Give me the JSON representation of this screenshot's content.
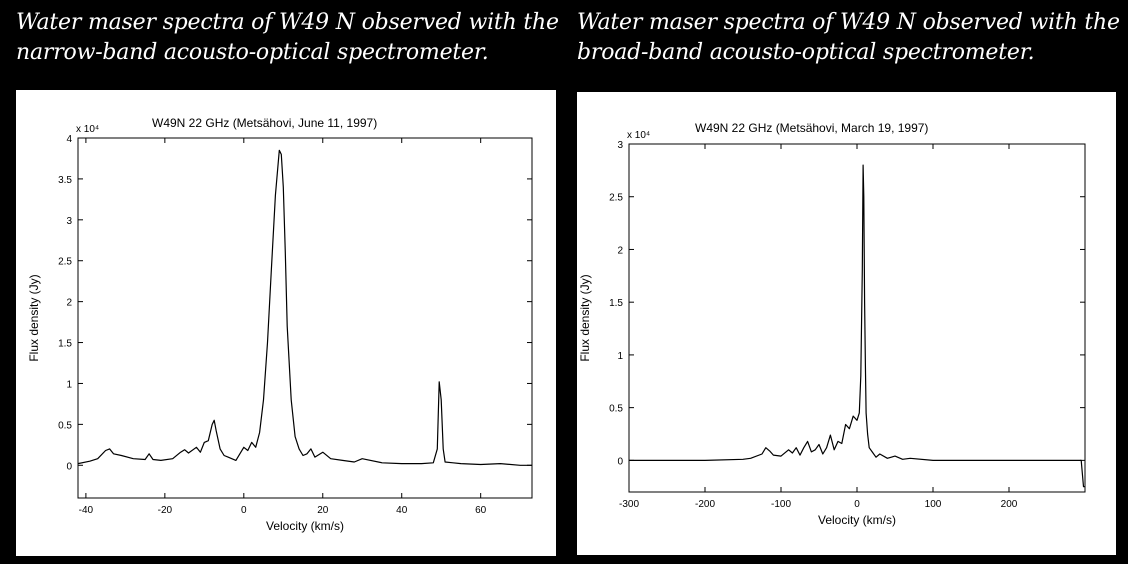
{
  "captions": {
    "left": "Water maser spectra of W49 N observed with the\nnarrow-band acousto-optical spectrometer.",
    "right": "Water maser spectra of W49 N observed with the\nbroad-band acousto-optical spectrometer."
  },
  "chart_data": [
    {
      "type": "line",
      "title": "W49N  22 GHz     (Metsähovi,  June 11, 1997)",
      "xlabel": "Velocity (km/s)",
      "ylabel": "Flux density (Jy)",
      "y_multiplier": "x 10⁴",
      "xlim": [
        -42,
        73
      ],
      "ylim": [
        -0.4,
        4
      ],
      "xticks": [
        -40,
        -20,
        0,
        20,
        40,
        60
      ],
      "xtick_labels": [
        "-40",
        "-20",
        "0",
        "20",
        "40",
        "60"
      ],
      "yticks": [
        0,
        0.5,
        1,
        1.5,
        2,
        2.5,
        3,
        3.5,
        4
      ],
      "ytick_labels": [
        "0",
        "0.5",
        "1",
        "1.5",
        "2",
        "2.5",
        "3",
        "3.5",
        "4"
      ],
      "grid": false,
      "x": [
        -42,
        -39,
        -37,
        -35,
        -34,
        -33,
        -31,
        -28,
        -25,
        -24,
        -23,
        -21,
        -18,
        -16,
        -15,
        -14,
        -12,
        -11,
        -10,
        -9,
        -8,
        -7.5,
        -7,
        -6,
        -5,
        -4,
        -2,
        0,
        1,
        2,
        3,
        4,
        5,
        6,
        7,
        8,
        9,
        9.5,
        10,
        10.5,
        11,
        12,
        13,
        14,
        15,
        16,
        17,
        18,
        20,
        22,
        25,
        28,
        30,
        35,
        40,
        45,
        48,
        49,
        49.5,
        50,
        50.5,
        51,
        53,
        55,
        60,
        65,
        70,
        73
      ],
      "y": [
        0.02,
        0.05,
        0.08,
        0.18,
        0.2,
        0.14,
        0.12,
        0.08,
        0.07,
        0.14,
        0.07,
        0.06,
        0.08,
        0.16,
        0.19,
        0.15,
        0.22,
        0.16,
        0.28,
        0.3,
        0.5,
        0.55,
        0.42,
        0.2,
        0.12,
        0.1,
        0.06,
        0.22,
        0.18,
        0.28,
        0.22,
        0.4,
        0.8,
        1.5,
        2.4,
        3.3,
        3.85,
        3.8,
        3.4,
        2.6,
        1.7,
        0.8,
        0.35,
        0.2,
        0.12,
        0.14,
        0.2,
        0.1,
        0.16,
        0.08,
        0.06,
        0.04,
        0.08,
        0.03,
        0.02,
        0.02,
        0.03,
        0.2,
        1.02,
        0.8,
        0.2,
        0.04,
        0.03,
        0.02,
        0.01,
        0.02,
        0.0,
        0.0
      ]
    },
    {
      "type": "line",
      "title": "W49N  22 GHz  (Metsähovi,  March 19, 1997)",
      "xlabel": "Velocity (km/s)",
      "ylabel": "Flux density (Jy)",
      "y_multiplier": "x 10⁴",
      "xlim": [
        -300,
        300
      ],
      "ylim": [
        -0.3,
        3
      ],
      "xticks": [
        -300,
        -200,
        -100,
        0,
        100,
        200
      ],
      "xtick_labels": [
        "-300",
        "-200",
        "-100",
        "0",
        "100",
        "200"
      ],
      "yticks": [
        0,
        0.5,
        1,
        1.5,
        2,
        2.5,
        3
      ],
      "ytick_labels": [
        "0",
        "0.5",
        "1",
        "1.5",
        "2",
        "2.5",
        "3"
      ],
      "grid": false,
      "x": [
        -300,
        -250,
        -200,
        -150,
        -140,
        -125,
        -120,
        -115,
        -110,
        -100,
        -90,
        -85,
        -80,
        -75,
        -70,
        -65,
        -60,
        -55,
        -50,
        -45,
        -40,
        -35,
        -30,
        -25,
        -20,
        -15,
        -10,
        -5,
        0,
        3,
        5,
        7,
        8,
        9,
        10,
        11,
        12,
        14,
        16,
        20,
        25,
        30,
        40,
        50,
        60,
        70,
        100,
        150,
        200,
        250,
        295,
        298,
        300
      ],
      "y": [
        0.0,
        0.0,
        0.0,
        0.01,
        0.02,
        0.06,
        0.12,
        0.09,
        0.05,
        0.04,
        0.1,
        0.07,
        0.12,
        0.05,
        0.12,
        0.18,
        0.08,
        0.1,
        0.15,
        0.06,
        0.12,
        0.24,
        0.1,
        0.18,
        0.16,
        0.34,
        0.3,
        0.42,
        0.38,
        0.45,
        0.8,
        1.8,
        2.8,
        2.5,
        1.5,
        0.9,
        0.45,
        0.25,
        0.12,
        0.08,
        0.03,
        0.06,
        0.02,
        0.04,
        0.01,
        0.02,
        0.0,
        0.0,
        0.0,
        0.0,
        0.0,
        -0.25,
        -0.25
      ]
    }
  ]
}
